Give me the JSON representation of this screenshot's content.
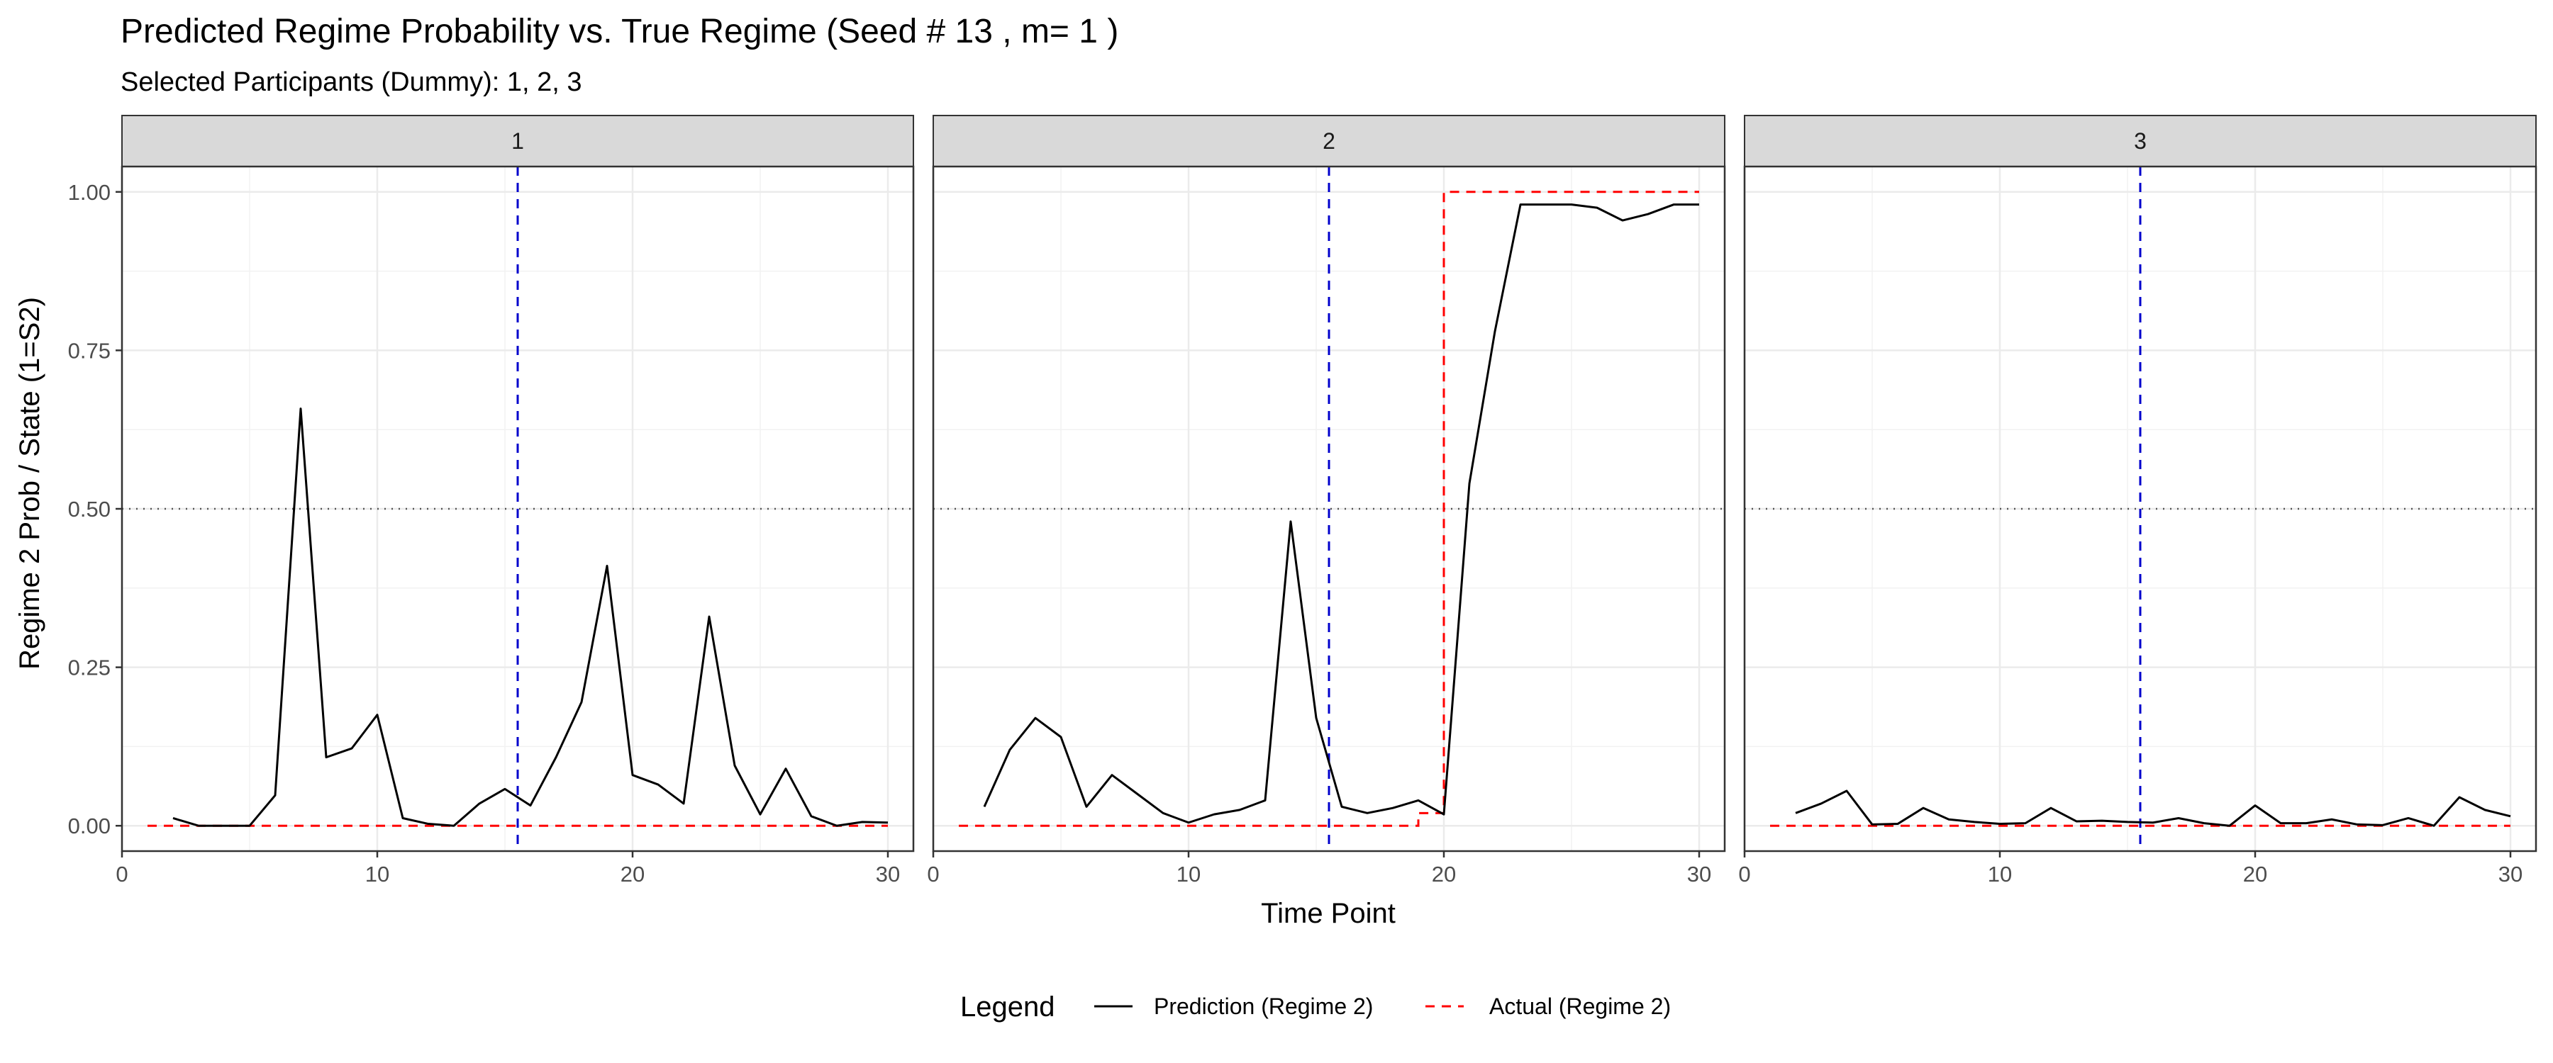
{
  "chart_data": {
    "type": "line",
    "title": "Predicted Regime Probability vs. True Regime (Seed # 13 , m= 1 )",
    "subtitle": "Selected Participants (Dummy): 1, 2, 3",
    "xlabel": "Time Point",
    "ylabel": "Regime 2 Prob / State (1=S2)",
    "xlim": [
      0,
      31
    ],
    "ylim": [
      -0.04,
      1.04
    ],
    "x_ticks": [
      0,
      10,
      20,
      30
    ],
    "y_ticks": [
      0.0,
      0.25,
      0.5,
      0.75,
      1.0
    ],
    "y_tick_labels": [
      "0.00",
      "0.25",
      "0.50",
      "0.75",
      "1.00"
    ],
    "grid": true,
    "legend_position": "bottom",
    "legend_title": "Legend",
    "reference_lines": {
      "horizontal_dotted_y": 0.5,
      "vertical_dashed_x": 15.5,
      "vertical_color": "#0000cc",
      "horizontal_color": "#555555"
    },
    "series_styles": [
      {
        "name": "Prediction (Regime 2)",
        "color": "#000000",
        "dash": "solid"
      },
      {
        "name": "Actual (Regime 2)",
        "color": "#ff0000",
        "dash": "dashed"
      }
    ],
    "panels": [
      {
        "label": "1",
        "prediction": {
          "x": [
            2,
            3,
            4,
            5,
            6,
            7,
            8,
            9,
            10,
            11,
            12,
            13,
            14,
            15,
            16,
            17,
            18,
            19,
            20,
            21,
            22,
            23,
            24,
            25,
            26,
            27,
            28,
            29,
            30
          ],
          "y": [
            0.012,
            0.0,
            0.0,
            0.0,
            0.048,
            0.658,
            0.108,
            0.122,
            0.175,
            0.012,
            0.003,
            0.0,
            0.035,
            0.058,
            0.032,
            0.108,
            0.195,
            0.41,
            0.08,
            0.065,
            0.035,
            0.33,
            0.095,
            0.018,
            0.09,
            0.015,
            0.0,
            0.006,
            0.005
          ]
        },
        "actual": {
          "x": [
            1,
            30
          ],
          "y": [
            0,
            0
          ]
        }
      },
      {
        "label": "2",
        "prediction": {
          "x": [
            2,
            3,
            4,
            5,
            6,
            7,
            8,
            9,
            10,
            11,
            12,
            13,
            14,
            15,
            16,
            17,
            18,
            19,
            20,
            21,
            22,
            23,
            24,
            25,
            26,
            27,
            28,
            29,
            30
          ],
          "y": [
            0.03,
            0.12,
            0.17,
            0.14,
            0.03,
            0.08,
            0.05,
            0.02,
            0.005,
            0.018,
            0.025,
            0.04,
            0.48,
            0.17,
            0.03,
            0.02,
            0.028,
            0.04,
            0.018,
            0.54,
            0.78,
            0.98,
            0.98,
            0.98,
            0.975,
            0.955,
            0.965,
            0.98,
            0.98
          ]
        },
        "actual": {
          "x": [
            1,
            19,
            19,
            20,
            20,
            30
          ],
          "y": [
            0,
            0,
            0.02,
            0.02,
            1,
            1
          ]
        }
      },
      {
        "label": "3",
        "prediction": {
          "x": [
            2,
            3,
            4,
            5,
            6,
            7,
            8,
            9,
            10,
            11,
            12,
            13,
            14,
            15,
            16,
            17,
            18,
            19,
            20,
            21,
            22,
            23,
            24,
            25,
            26,
            27,
            28,
            29,
            30
          ],
          "y": [
            0.02,
            0.035,
            0.055,
            0.002,
            0.003,
            0.028,
            0.01,
            0.006,
            0.003,
            0.004,
            0.028,
            0.007,
            0.008,
            0.006,
            0.005,
            0.012,
            0.004,
            0.0,
            0.032,
            0.004,
            0.004,
            0.01,
            0.002,
            0.001,
            0.012,
            0.0,
            0.045,
            0.025,
            0.015
          ]
        },
        "actual": {
          "x": [
            1,
            30
          ],
          "y": [
            0,
            0
          ]
        }
      }
    ]
  }
}
